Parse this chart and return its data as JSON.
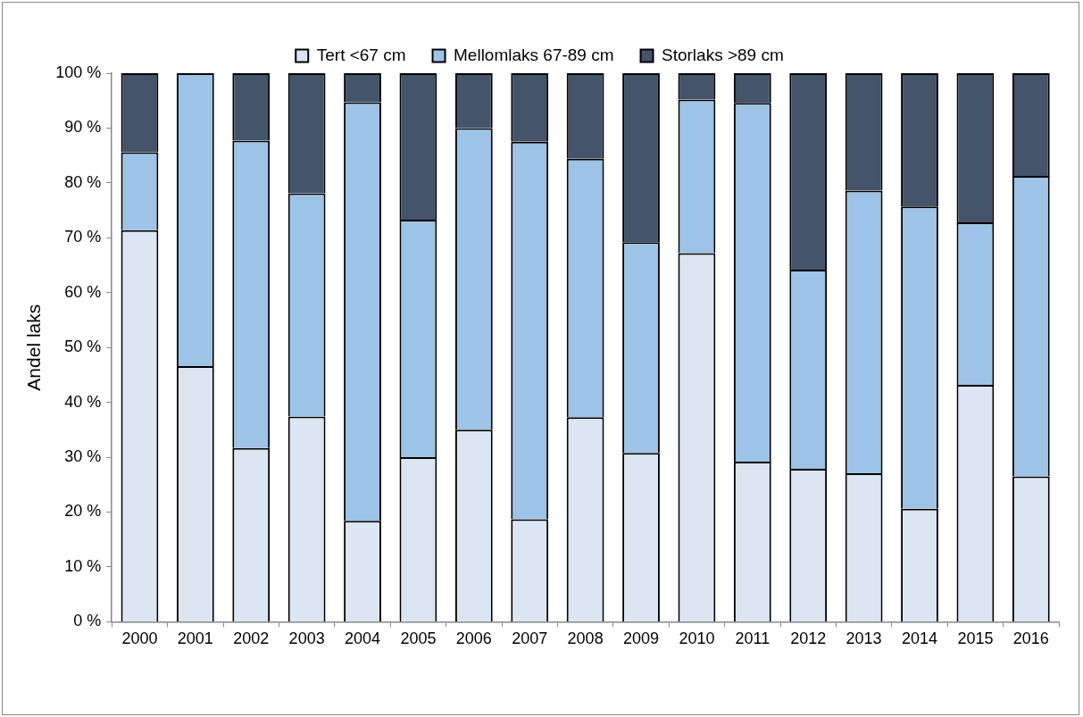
{
  "chart_data": {
    "type": "bar",
    "stacked": true,
    "ylabel": "Andel laks",
    "categories": [
      "2000",
      "2001",
      "2002",
      "2003",
      "2004",
      "2005",
      "2006",
      "2007",
      "2008",
      "2009",
      "2010",
      "2011",
      "2012",
      "2013",
      "2014",
      "2015",
      "2016"
    ],
    "series": [
      {
        "name": "Tert <67 cm",
        "color": "#dce6f2",
        "values": [
          71.4,
          46.6,
          31.7,
          37.4,
          18.4,
          30.0,
          35.0,
          18.7,
          37.3,
          30.8,
          67.2,
          29.2,
          27.9,
          27.1,
          20.6,
          43.2,
          26.5
        ]
      },
      {
        "name": "Mellomlaks 67-89 cm",
        "color": "#9dc3e6",
        "values": [
          14.2,
          53.4,
          56.0,
          40.7,
          76.3,
          43.3,
          55.0,
          68.8,
          47.1,
          38.4,
          28.0,
          65.4,
          36.3,
          51.5,
          55.1,
          29.6,
          54.8
        ]
      },
      {
        "name": "Storlaks >89 cm",
        "color": "#44546a",
        "values": [
          14.4,
          0,
          12.3,
          21.9,
          5.3,
          26.7,
          10.0,
          12.5,
          15.6,
          30.8,
          4.8,
          5.4,
          35.8,
          21.4,
          24.3,
          27.2,
          18.7
        ]
      }
    ],
    "ylim": [
      0,
      100
    ],
    "yticks": [
      {
        "value": 0,
        "label": "0 %"
      },
      {
        "value": 10,
        "label": "10 %"
      },
      {
        "value": 20,
        "label": "20 %"
      },
      {
        "value": 30,
        "label": "30 %"
      },
      {
        "value": 40,
        "label": "40 %"
      },
      {
        "value": 50,
        "label": "50 %"
      },
      {
        "value": 60,
        "label": "60 %"
      },
      {
        "value": 70,
        "label": "70 %"
      },
      {
        "value": 80,
        "label": "80 %"
      },
      {
        "value": 90,
        "label": "90 %"
      },
      {
        "value": 100,
        "label": "100 %"
      }
    ],
    "grid": false,
    "legend": "top"
  }
}
